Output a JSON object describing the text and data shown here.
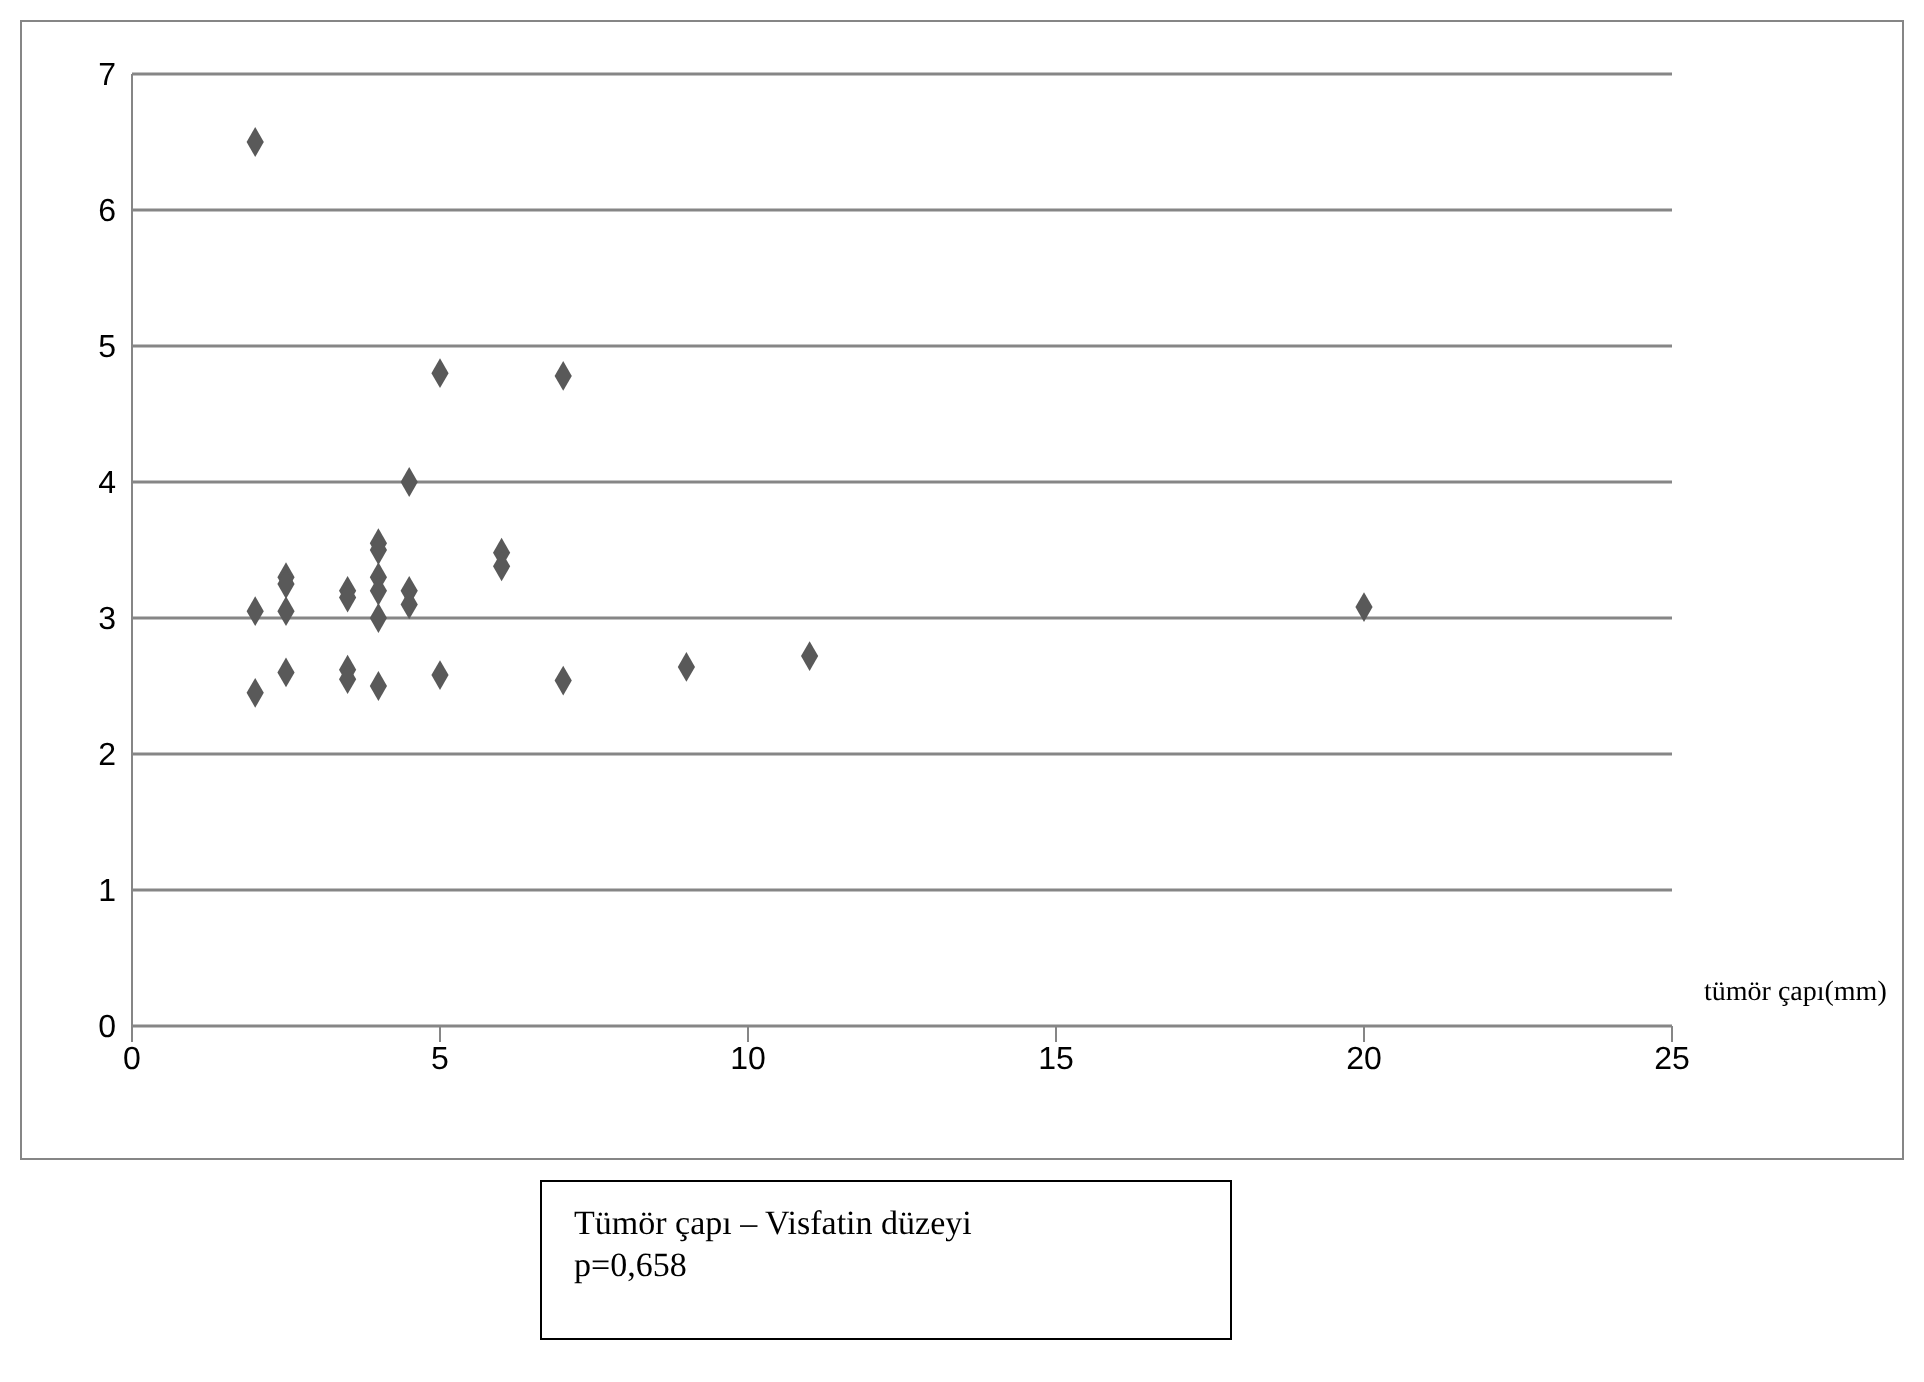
{
  "chart_data": {
    "type": "scatter",
    "xlabel": "tümör çapı(mm)",
    "annotations": [
      "Tümör çapı – Visfatin düzeyi",
      "p=0,658"
    ],
    "x": [
      2,
      2,
      2,
      2.5,
      2.5,
      2.5,
      2.5,
      3.5,
      3.5,
      3.5,
      3.5,
      4,
      4,
      4,
      4,
      4,
      4,
      4.5,
      4.5,
      4.5,
      5,
      5,
      6,
      6,
      7,
      7,
      9,
      11,
      20
    ],
    "series": [
      {
        "color": "#595959",
        "values": [
          6.5,
          3.05,
          2.45,
          3.3,
          3.25,
          3.05,
          2.6,
          3.2,
          3.15,
          2.62,
          2.55,
          3.55,
          3.5,
          3.3,
          3.2,
          3.0,
          2.5,
          4.0,
          3.2,
          3.1,
          4.8,
          2.58,
          3.48,
          3.38,
          4.78,
          2.54,
          2.64,
          2.72,
          3.08
        ]
      }
    ],
    "xlim": [
      0,
      25
    ],
    "xticks": [
      0,
      5,
      10,
      15,
      20,
      25
    ],
    "ylim": [
      0,
      7
    ],
    "yticks": [
      0,
      1,
      2,
      3,
      4,
      5,
      6,
      7
    ],
    "grid": "y",
    "marker": "diamond",
    "legend": false
  }
}
